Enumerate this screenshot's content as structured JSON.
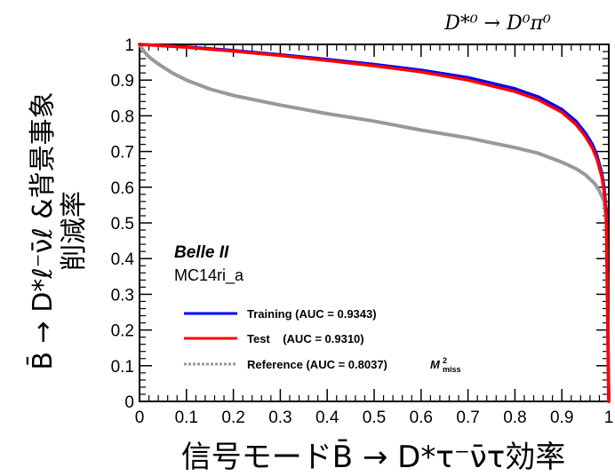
{
  "chart_data": {
    "type": "line",
    "title": "D*⁰ → D⁰π⁰",
    "xlabel": "信号モードB̄ → D*τ⁻ν̄τ効率",
    "ylabel_line1": "B̄ → D*ℓ⁻ν̄ℓ &背景事象",
    "ylabel_line2": "削減率",
    "xlim": [
      0,
      1
    ],
    "ylim": [
      0,
      1
    ],
    "x_ticks": [
      "0",
      "0.1",
      "0.2",
      "0.3",
      "0.4",
      "0.5",
      "0.6",
      "0.7",
      "0.8",
      "0.9",
      "1"
    ],
    "y_ticks": [
      "0",
      "0.1",
      "0.2",
      "0.3",
      "0.4",
      "0.5",
      "0.6",
      "0.7",
      "0.8",
      "0.9",
      "1"
    ],
    "experiment": "Belle II",
    "sample": "MC14ri_a",
    "legend_position": "bottom-left",
    "series": [
      {
        "name": "Training (AUC = 0.9343)",
        "color": "#0000ff",
        "style": "solid",
        "x": [
          0,
          0.05,
          0.1,
          0.2,
          0.3,
          0.4,
          0.5,
          0.6,
          0.7,
          0.8,
          0.85,
          0.9,
          0.93,
          0.95,
          0.965,
          0.975,
          0.985,
          0.99,
          0.995,
          1.0
        ],
        "y": [
          1.0,
          0.997,
          0.993,
          0.983,
          0.971,
          0.958,
          0.944,
          0.928,
          0.907,
          0.876,
          0.853,
          0.818,
          0.785,
          0.752,
          0.72,
          0.688,
          0.64,
          0.6,
          0.53,
          0.0
        ]
      },
      {
        "name": "Test    (AUC = 0.9310)",
        "color": "#ff0000",
        "style": "solid",
        "x": [
          0,
          0.05,
          0.1,
          0.2,
          0.3,
          0.4,
          0.5,
          0.6,
          0.7,
          0.8,
          0.85,
          0.9,
          0.93,
          0.95,
          0.965,
          0.975,
          0.985,
          0.99,
          0.995,
          1.0
        ],
        "y": [
          1.0,
          0.996,
          0.992,
          0.981,
          0.969,
          0.955,
          0.94,
          0.923,
          0.9,
          0.868,
          0.845,
          0.81,
          0.776,
          0.743,
          0.71,
          0.678,
          0.63,
          0.59,
          0.52,
          0.0
        ]
      },
      {
        "name": "Reference (AUC = 0.8037)",
        "name_suffix": "M",
        "name_suffix_sup": "2",
        "name_suffix_sub": "miss",
        "color": "#999999",
        "style": "dashed",
        "x": [
          0,
          0.01,
          0.02,
          0.04,
          0.07,
          0.1,
          0.15,
          0.2,
          0.3,
          0.4,
          0.5,
          0.6,
          0.7,
          0.8,
          0.85,
          0.9,
          0.93,
          0.95,
          0.97,
          0.98,
          0.99,
          0.995,
          1.0
        ],
        "y": [
          1.0,
          0.98,
          0.965,
          0.945,
          0.92,
          0.9,
          0.875,
          0.857,
          0.83,
          0.806,
          0.785,
          0.76,
          0.738,
          0.711,
          0.695,
          0.67,
          0.652,
          0.635,
          0.61,
          0.59,
          0.56,
          0.5,
          0.0
        ]
      }
    ]
  }
}
